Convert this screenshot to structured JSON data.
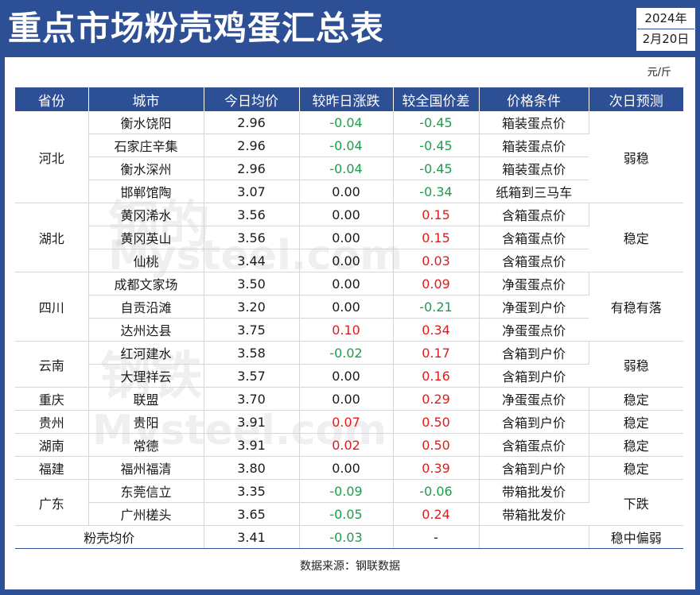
{
  "title": "重点市场粉壳鸡蛋汇总表",
  "date": {
    "year": "2024年",
    "day": "2月20日"
  },
  "unit": "元/斤",
  "headers": [
    "省份",
    "城市",
    "今日均价",
    "较昨日涨跌",
    "较全国价差",
    "价格条件",
    "次日预测"
  ],
  "watermarks": {
    "text1": "钢的",
    "text2": "钢铁",
    "brand": "Mysteel.com"
  },
  "rows": [
    {
      "province": "河北",
      "city": "衡水饶阳",
      "price": "2.96",
      "change": "-0.04",
      "diff": "-0.45",
      "cond": "箱装蛋点价",
      "forecast": "弱稳"
    },
    {
      "city": "石家庄辛集",
      "price": "2.96",
      "change": "-0.04",
      "diff": "-0.45",
      "cond": "箱装蛋点价"
    },
    {
      "city": "衡水深州",
      "price": "2.96",
      "change": "-0.04",
      "diff": "-0.45",
      "cond": "箱装蛋点价"
    },
    {
      "city": "邯郸馆陶",
      "price": "3.07",
      "change": "0.00",
      "diff": "-0.34",
      "cond": "纸箱到三马车"
    },
    {
      "province": "湖北",
      "city": "黄冈浠水",
      "price": "3.56",
      "change": "0.00",
      "diff": "0.15",
      "cond": "含箱蛋点价",
      "forecast": "稳定"
    },
    {
      "city": "黄冈英山",
      "price": "3.56",
      "change": "0.00",
      "diff": "0.15",
      "cond": "含箱蛋点价"
    },
    {
      "city": "仙桃",
      "price": "3.44",
      "change": "0.00",
      "diff": "0.03",
      "cond": "含箱蛋点价"
    },
    {
      "province": "四川",
      "city": "成都文家场",
      "price": "3.50",
      "change": "0.00",
      "diff": "0.09",
      "cond": "净蛋蛋点价",
      "forecast": "有稳有落"
    },
    {
      "city": "自贡沿滩",
      "price": "3.20",
      "change": "0.00",
      "diff": "-0.21",
      "cond": "净蛋到户价"
    },
    {
      "city": "达州达县",
      "price": "3.75",
      "change": "0.10",
      "diff": "0.34",
      "cond": "净蛋蛋点价"
    },
    {
      "province": "云南",
      "city": "红河建水",
      "price": "3.58",
      "change": "-0.02",
      "diff": "0.17",
      "cond": "含箱到户价",
      "forecast": "弱稳"
    },
    {
      "city": "大理祥云",
      "price": "3.57",
      "change": "0.00",
      "diff": "0.16",
      "cond": "含箱到户价"
    },
    {
      "province": "重庆",
      "city": "联盟",
      "price": "3.70",
      "change": "0.00",
      "diff": "0.29",
      "cond": "净蛋蛋点价",
      "forecast": "稳定"
    },
    {
      "province": "贵州",
      "city": "贵阳",
      "price": "3.91",
      "change": "0.07",
      "diff": "0.50",
      "cond": "含箱到户价",
      "forecast": "稳定"
    },
    {
      "province": "湖南",
      "city": "常德",
      "price": "3.91",
      "change": "0.02",
      "diff": "0.50",
      "cond": "含箱蛋点价",
      "forecast": "稳定"
    },
    {
      "province": "福建",
      "city": "福州福清",
      "price": "3.80",
      "change": "0.00",
      "diff": "0.39",
      "cond": "含箱到户价",
      "forecast": "稳定"
    },
    {
      "province": "广东",
      "city": "东莞信立",
      "price": "3.35",
      "change": "-0.09",
      "diff": "-0.06",
      "cond": "带箱批发价",
      "forecast": "下跌"
    },
    {
      "city": "广州槎头",
      "price": "3.65",
      "change": "-0.05",
      "diff": "0.24",
      "cond": "带箱批发价"
    }
  ],
  "summary": {
    "label": "粉壳均价",
    "price": "3.41",
    "change": "-0.03",
    "diff": "-",
    "forecast": "稳中偏弱"
  },
  "source": "数据来源：钢联数据",
  "colors": {
    "header_bg": "#2d4f96",
    "down": "#1a9f4a",
    "up": "#e01b1b"
  }
}
